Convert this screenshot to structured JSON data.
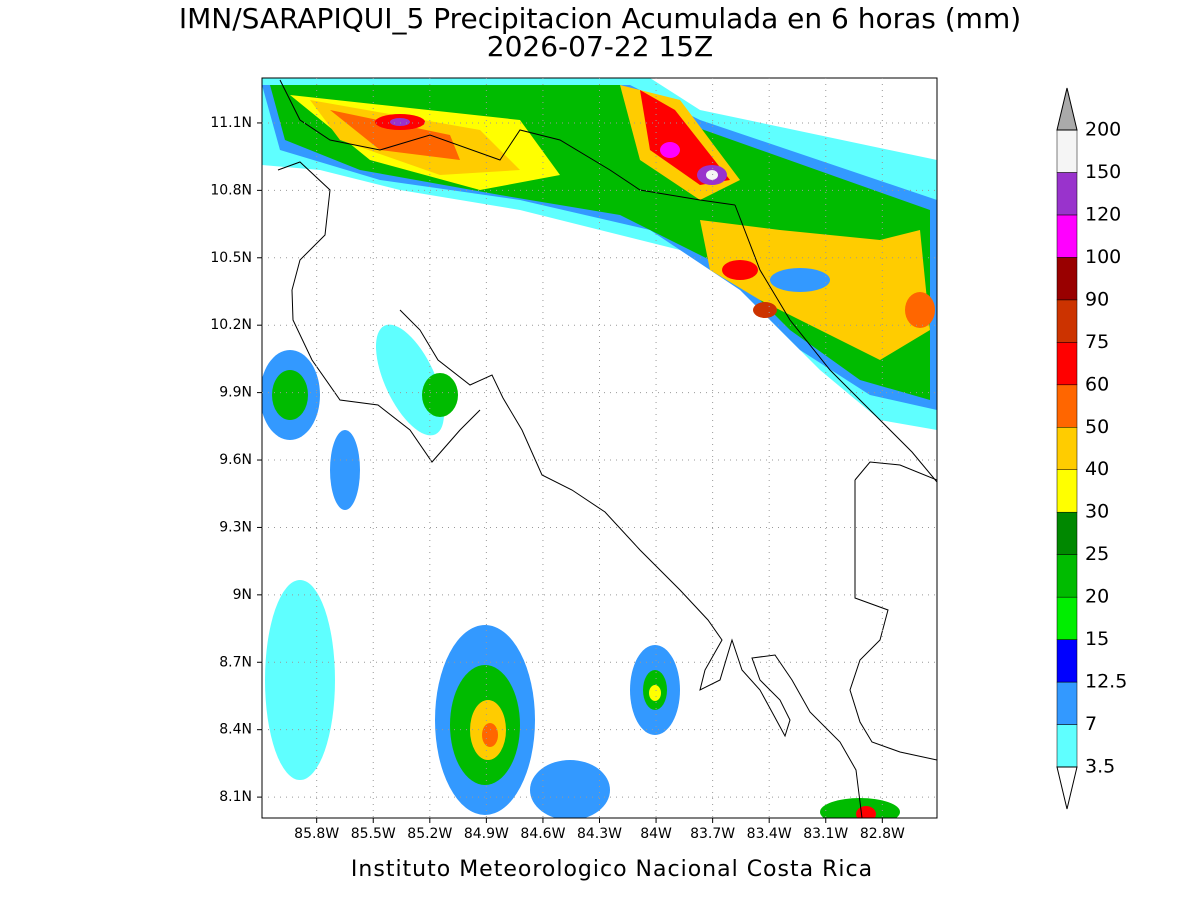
{
  "header": {
    "title": "IMN/SARAPIQUI_5 Precipitacion Acumulada en 6 horas (mm)",
    "subtitle": "2026-07-22 15Z"
  },
  "map": {
    "lonlim": [
      -86.09,
      -82.51
    ],
    "latlim": [
      8.007,
      11.3
    ],
    "lat_ticks": [
      {
        "value": 8.1,
        "label": "8.1N"
      },
      {
        "value": 8.4,
        "label": "8.4N"
      },
      {
        "value": 8.7,
        "label": "8.7N"
      },
      {
        "value": 9.0,
        "label": "9N"
      },
      {
        "value": 9.3,
        "label": "9.3N"
      },
      {
        "value": 9.6,
        "label": "9.6N"
      },
      {
        "value": 9.9,
        "label": "9.9N"
      },
      {
        "value": 10.2,
        "label": "10.2N"
      },
      {
        "value": 10.5,
        "label": "10.5N"
      },
      {
        "value": 10.8,
        "label": "10.8N"
      },
      {
        "value": 11.1,
        "label": "11.1N"
      }
    ],
    "lon_ticks": [
      {
        "value": -85.8,
        "label": "85.8W"
      },
      {
        "value": -85.5,
        "label": "85.5W"
      },
      {
        "value": -85.2,
        "label": "85.2W"
      },
      {
        "value": -84.9,
        "label": "84.9W"
      },
      {
        "value": -84.6,
        "label": "84.6W"
      },
      {
        "value": -84.3,
        "label": "84.3W"
      },
      {
        "value": -84.0,
        "label": "84W"
      },
      {
        "value": -83.7,
        "label": "83.7W"
      },
      {
        "value": -83.4,
        "label": "83.4W"
      },
      {
        "value": -83.1,
        "label": "83.1W"
      },
      {
        "value": -82.8,
        "label": "82.8W"
      }
    ],
    "grid": true
  },
  "colorbar": {
    "levels": [
      3.5,
      7,
      12.5,
      15,
      20,
      25,
      30,
      40,
      50,
      60,
      75,
      90,
      100,
      120,
      150,
      200
    ],
    "colors": [
      "#5fffff",
      "#3399ff",
      "#0000ff",
      "#00ee00",
      "#00bb00",
      "#008800",
      "#ffff00",
      "#ffcc00",
      "#ff6600",
      "#ff0000",
      "#cc3300",
      "#990000",
      "#ff00ff",
      "#9933cc",
      "#f5f5f5"
    ],
    "under_color": "#ffffff",
    "over_color": "#aaaaaa"
  },
  "footer": "Instituto Meteorologico Nacional Costa Rica"
}
